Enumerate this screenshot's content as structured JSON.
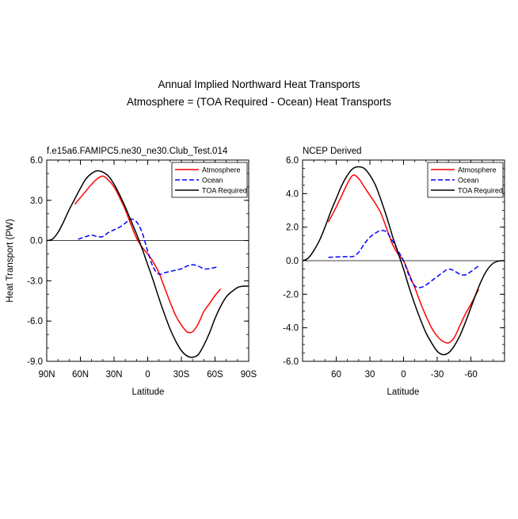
{
  "title": {
    "line1": "Annual Implied Northward Heat Transports",
    "line2": "Atmosphere = (TOA Required - Ocean) Heat Transports"
  },
  "chart_data": [
    {
      "type": "line",
      "subtitle": "f.e15a6.FAMIPC5.ne30_ne30.Club_Test.014",
      "xlabel": "Latitude",
      "ylabel": "Heat Transport (PW)",
      "xlim": [
        90,
        -90
      ],
      "ylim": [
        -9,
        6
      ],
      "xticks": [
        90,
        60,
        30,
        0,
        -30,
        -60,
        -90
      ],
      "xtick_labels": [
        "90N",
        "60N",
        "30N",
        "0",
        "30S",
        "60S",
        "90S"
      ],
      "yticks": [
        6,
        3,
        0,
        -3,
        -6,
        -9
      ],
      "ytick_labels": [
        "6.0",
        "3.0",
        "0.0",
        "-3.0",
        "-6.0",
        "-9.0"
      ],
      "legend": [
        "Atmosphere",
        "Ocean",
        "TOA Required"
      ],
      "series": [
        {
          "name": "Atmosphere",
          "color": "#ff0000",
          "dash": "solid",
          "x": [
            65,
            60,
            55,
            50,
            45,
            40,
            35,
            30,
            25,
            20,
            15,
            10,
            5,
            0,
            -5,
            -10,
            -15,
            -20,
            -25,
            -30,
            -35,
            -40,
            -45,
            -50,
            -55,
            -60,
            -65
          ],
          "y": [
            2.7,
            3.2,
            3.7,
            4.2,
            4.6,
            4.8,
            4.5,
            4.0,
            3.2,
            2.3,
            1.2,
            0.2,
            -0.5,
            -1.0,
            -1.6,
            -2.4,
            -3.5,
            -4.6,
            -5.6,
            -6.3,
            -6.8,
            -6.8,
            -6.2,
            -5.3,
            -4.7,
            -4.1,
            -3.6
          ]
        },
        {
          "name": "Ocean",
          "color": "#0000ff",
          "dash": "dashed",
          "x": [
            62,
            55,
            50,
            45,
            40,
            35,
            30,
            25,
            20,
            15,
            10,
            5,
            0,
            -5,
            -10,
            -15,
            -20,
            -30,
            -35,
            -40,
            -45,
            -50,
            -55,
            -60,
            -62
          ],
          "y": [
            0.1,
            0.3,
            0.4,
            0.3,
            0.3,
            0.6,
            0.8,
            1.0,
            1.3,
            1.6,
            1.4,
            0.6,
            -0.8,
            -2.0,
            -2.5,
            -2.4,
            -2.3,
            -2.1,
            -1.9,
            -1.8,
            -1.9,
            -2.1,
            -2.1,
            -2.0,
            -2.0
          ]
        },
        {
          "name": "TOA Required",
          "color": "#000000",
          "dash": "solid",
          "x": [
            90,
            85,
            80,
            75,
            70,
            65,
            60,
            55,
            50,
            45,
            40,
            35,
            30,
            25,
            20,
            15,
            10,
            5,
            0,
            -5,
            -10,
            -15,
            -20,
            -25,
            -30,
            -35,
            -40,
            -45,
            -50,
            -55,
            -60,
            -65,
            -70,
            -75,
            -80,
            -85,
            -90
          ],
          "y": [
            0.0,
            0.1,
            0.6,
            1.4,
            2.3,
            3.1,
            3.9,
            4.6,
            5.0,
            5.2,
            5.1,
            4.8,
            4.2,
            3.4,
            2.5,
            1.5,
            0.5,
            -0.6,
            -1.8,
            -3.0,
            -4.3,
            -5.5,
            -6.6,
            -7.5,
            -8.2,
            -8.6,
            -8.7,
            -8.5,
            -7.8,
            -6.9,
            -5.8,
            -4.9,
            -4.2,
            -3.8,
            -3.5,
            -3.4,
            -3.4
          ]
        }
      ]
    },
    {
      "type": "line",
      "subtitle": "NCEP Derived",
      "xlabel": "Latitude",
      "ylabel": "",
      "xlim": [
        90,
        -90
      ],
      "ylim": [
        -6,
        6
      ],
      "xticks": [
        60,
        30,
        0,
        -30,
        -60
      ],
      "xtick_labels": [
        "60",
        "30",
        "0",
        "-30",
        "-60"
      ],
      "yticks": [
        6,
        4,
        2,
        0,
        -2,
        -4,
        -6
      ],
      "ytick_labels": [
        "6.0",
        "4.0",
        "2.0",
        "0.0",
        "-2.0",
        "-4.0",
        "-6.0"
      ],
      "legend": [
        "Atmosphere",
        "Ocean",
        "TOA Required"
      ],
      "series": [
        {
          "name": "Atmosphere",
          "color": "#ff0000",
          "dash": "solid",
          "x": [
            67,
            60,
            55,
            50,
            45,
            40,
            35,
            30,
            25,
            20,
            15,
            10,
            5,
            0,
            -5,
            -10,
            -15,
            -20,
            -25,
            -30,
            -35,
            -40,
            -45,
            -50,
            -55,
            -60,
            -67
          ],
          "y": [
            2.3,
            3.2,
            3.9,
            4.6,
            5.1,
            4.9,
            4.4,
            3.9,
            3.4,
            2.8,
            1.9,
            1.0,
            0.4,
            0.0,
            -0.8,
            -1.6,
            -2.5,
            -3.3,
            -4.0,
            -4.5,
            -4.8,
            -4.9,
            -4.6,
            -3.9,
            -3.2,
            -2.6,
            -1.7
          ]
        },
        {
          "name": "Ocean",
          "color": "#0000ff",
          "dash": "dashed",
          "x": [
            67,
            60,
            50,
            45,
            40,
            35,
            30,
            25,
            20,
            15,
            10,
            5,
            0,
            -5,
            -10,
            -15,
            -20,
            -25,
            -30,
            -35,
            -40,
            -45,
            -50,
            -55,
            -60,
            -67
          ],
          "y": [
            0.2,
            0.22,
            0.25,
            0.25,
            0.5,
            1.0,
            1.4,
            1.65,
            1.8,
            1.7,
            1.2,
            0.6,
            0.0,
            -0.9,
            -1.5,
            -1.6,
            -1.45,
            -1.2,
            -0.95,
            -0.7,
            -0.5,
            -0.6,
            -0.8,
            -0.85,
            -0.65,
            -0.3
          ]
        },
        {
          "name": "TOA Required",
          "color": "#000000",
          "dash": "solid",
          "x": [
            90,
            85,
            80,
            75,
            70,
            65,
            60,
            55,
            50,
            45,
            40,
            35,
            30,
            25,
            20,
            15,
            10,
            5,
            0,
            -5,
            -10,
            -15,
            -20,
            -25,
            -30,
            -35,
            -40,
            -45,
            -50,
            -55,
            -60,
            -65,
            -70,
            -75,
            -80,
            -85,
            -90
          ],
          "y": [
            0.0,
            0.15,
            0.6,
            1.2,
            2.0,
            2.9,
            3.7,
            4.5,
            5.1,
            5.5,
            5.6,
            5.5,
            5.1,
            4.5,
            3.6,
            2.6,
            1.5,
            0.5,
            -0.5,
            -1.6,
            -2.6,
            -3.5,
            -4.3,
            -4.9,
            -5.4,
            -5.6,
            -5.5,
            -5.1,
            -4.5,
            -3.7,
            -2.8,
            -1.9,
            -1.1,
            -0.5,
            -0.15,
            -0.02,
            0.0
          ]
        }
      ]
    }
  ]
}
